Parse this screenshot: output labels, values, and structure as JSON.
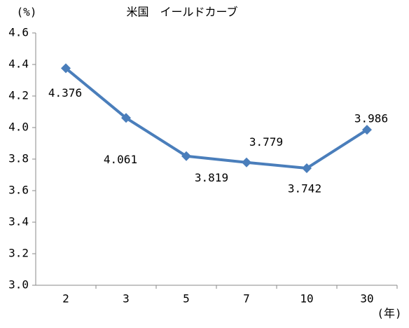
{
  "chart_data": {
    "type": "line",
    "title": "米国　イールドカーブ",
    "y_label": "(%)",
    "x_label": "(年)",
    "categories": [
      "2",
      "3",
      "5",
      "7",
      "10",
      "30"
    ],
    "series": [
      {
        "name": "米国",
        "color": "#4a7ebb",
        "values": [
          4.376,
          4.061,
          3.819,
          3.779,
          3.742,
          3.986
        ]
      }
    ],
    "ylim": [
      3.0,
      4.6
    ],
    "yticks": [
      {
        "value": 3.0,
        "label": "3.0"
      },
      3.2,
      3.4,
      3.6,
      3.8,
      {
        "value": 4.0,
        "label": "4.0"
      },
      4.2,
      4.4,
      4.6
    ],
    "grid": false,
    "legend": false
  }
}
